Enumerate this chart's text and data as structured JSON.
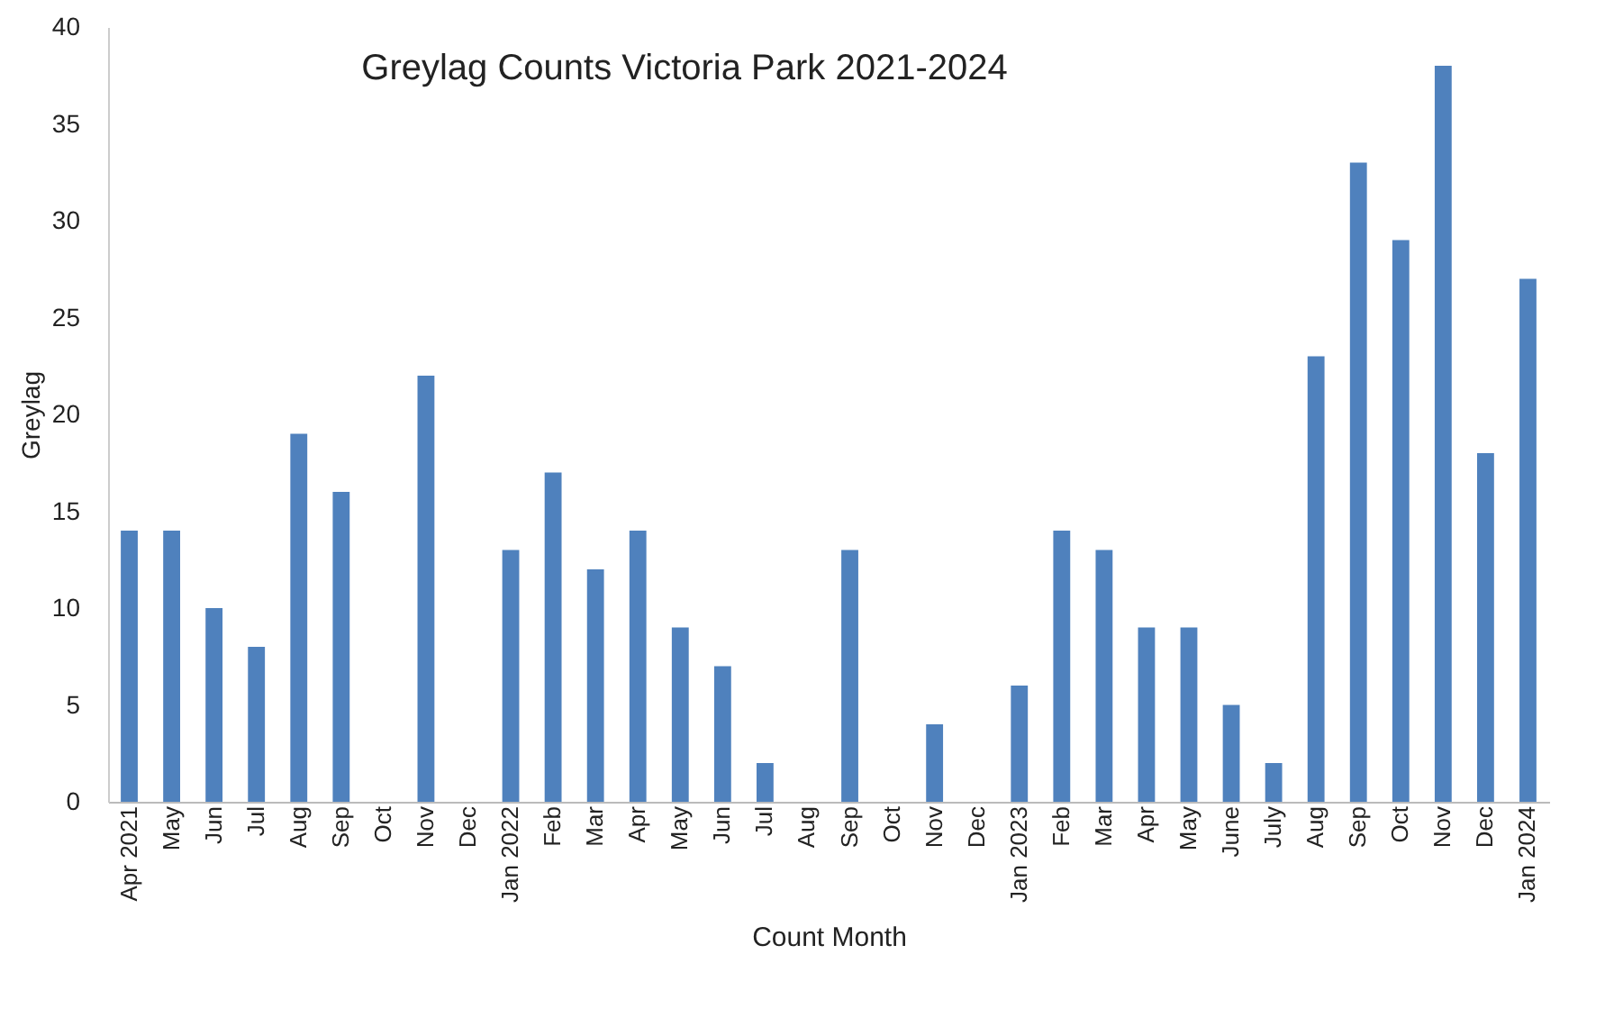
{
  "chart_data": {
    "type": "bar",
    "title": "Greylag Counts Victoria Park 2021-2024",
    "xlabel": "Count Month",
    "ylabel": "Greylag",
    "categories": [
      "Apr 2021",
      "May",
      "Jun",
      "Jul",
      "Aug",
      "Sep",
      "Oct",
      "Nov",
      "Dec",
      "Jan 2022",
      "Feb",
      "Mar",
      "Apr",
      "May",
      "Jun",
      "Jul",
      "Aug",
      "Sep",
      "Oct",
      "Nov",
      "Dec",
      "Jan 2023",
      "Feb",
      "Mar",
      "Apr",
      "May",
      "June",
      "July",
      "Aug",
      "Sep",
      "Oct",
      "Nov",
      "Dec",
      "Jan 2024"
    ],
    "values": [
      14,
      14,
      10,
      8,
      19,
      16,
      null,
      22,
      null,
      13,
      17,
      12,
      14,
      9,
      7,
      2,
      null,
      13,
      null,
      4,
      null,
      6,
      14,
      13,
      9,
      9,
      5,
      2,
      23,
      33,
      29,
      38,
      18,
      27
    ],
    "color": "#4f81bd",
    "ylim": [
      0,
      40
    ],
    "yticks": [
      0,
      5,
      10,
      15,
      20,
      25,
      30,
      35,
      40
    ],
    "grid": false
  }
}
